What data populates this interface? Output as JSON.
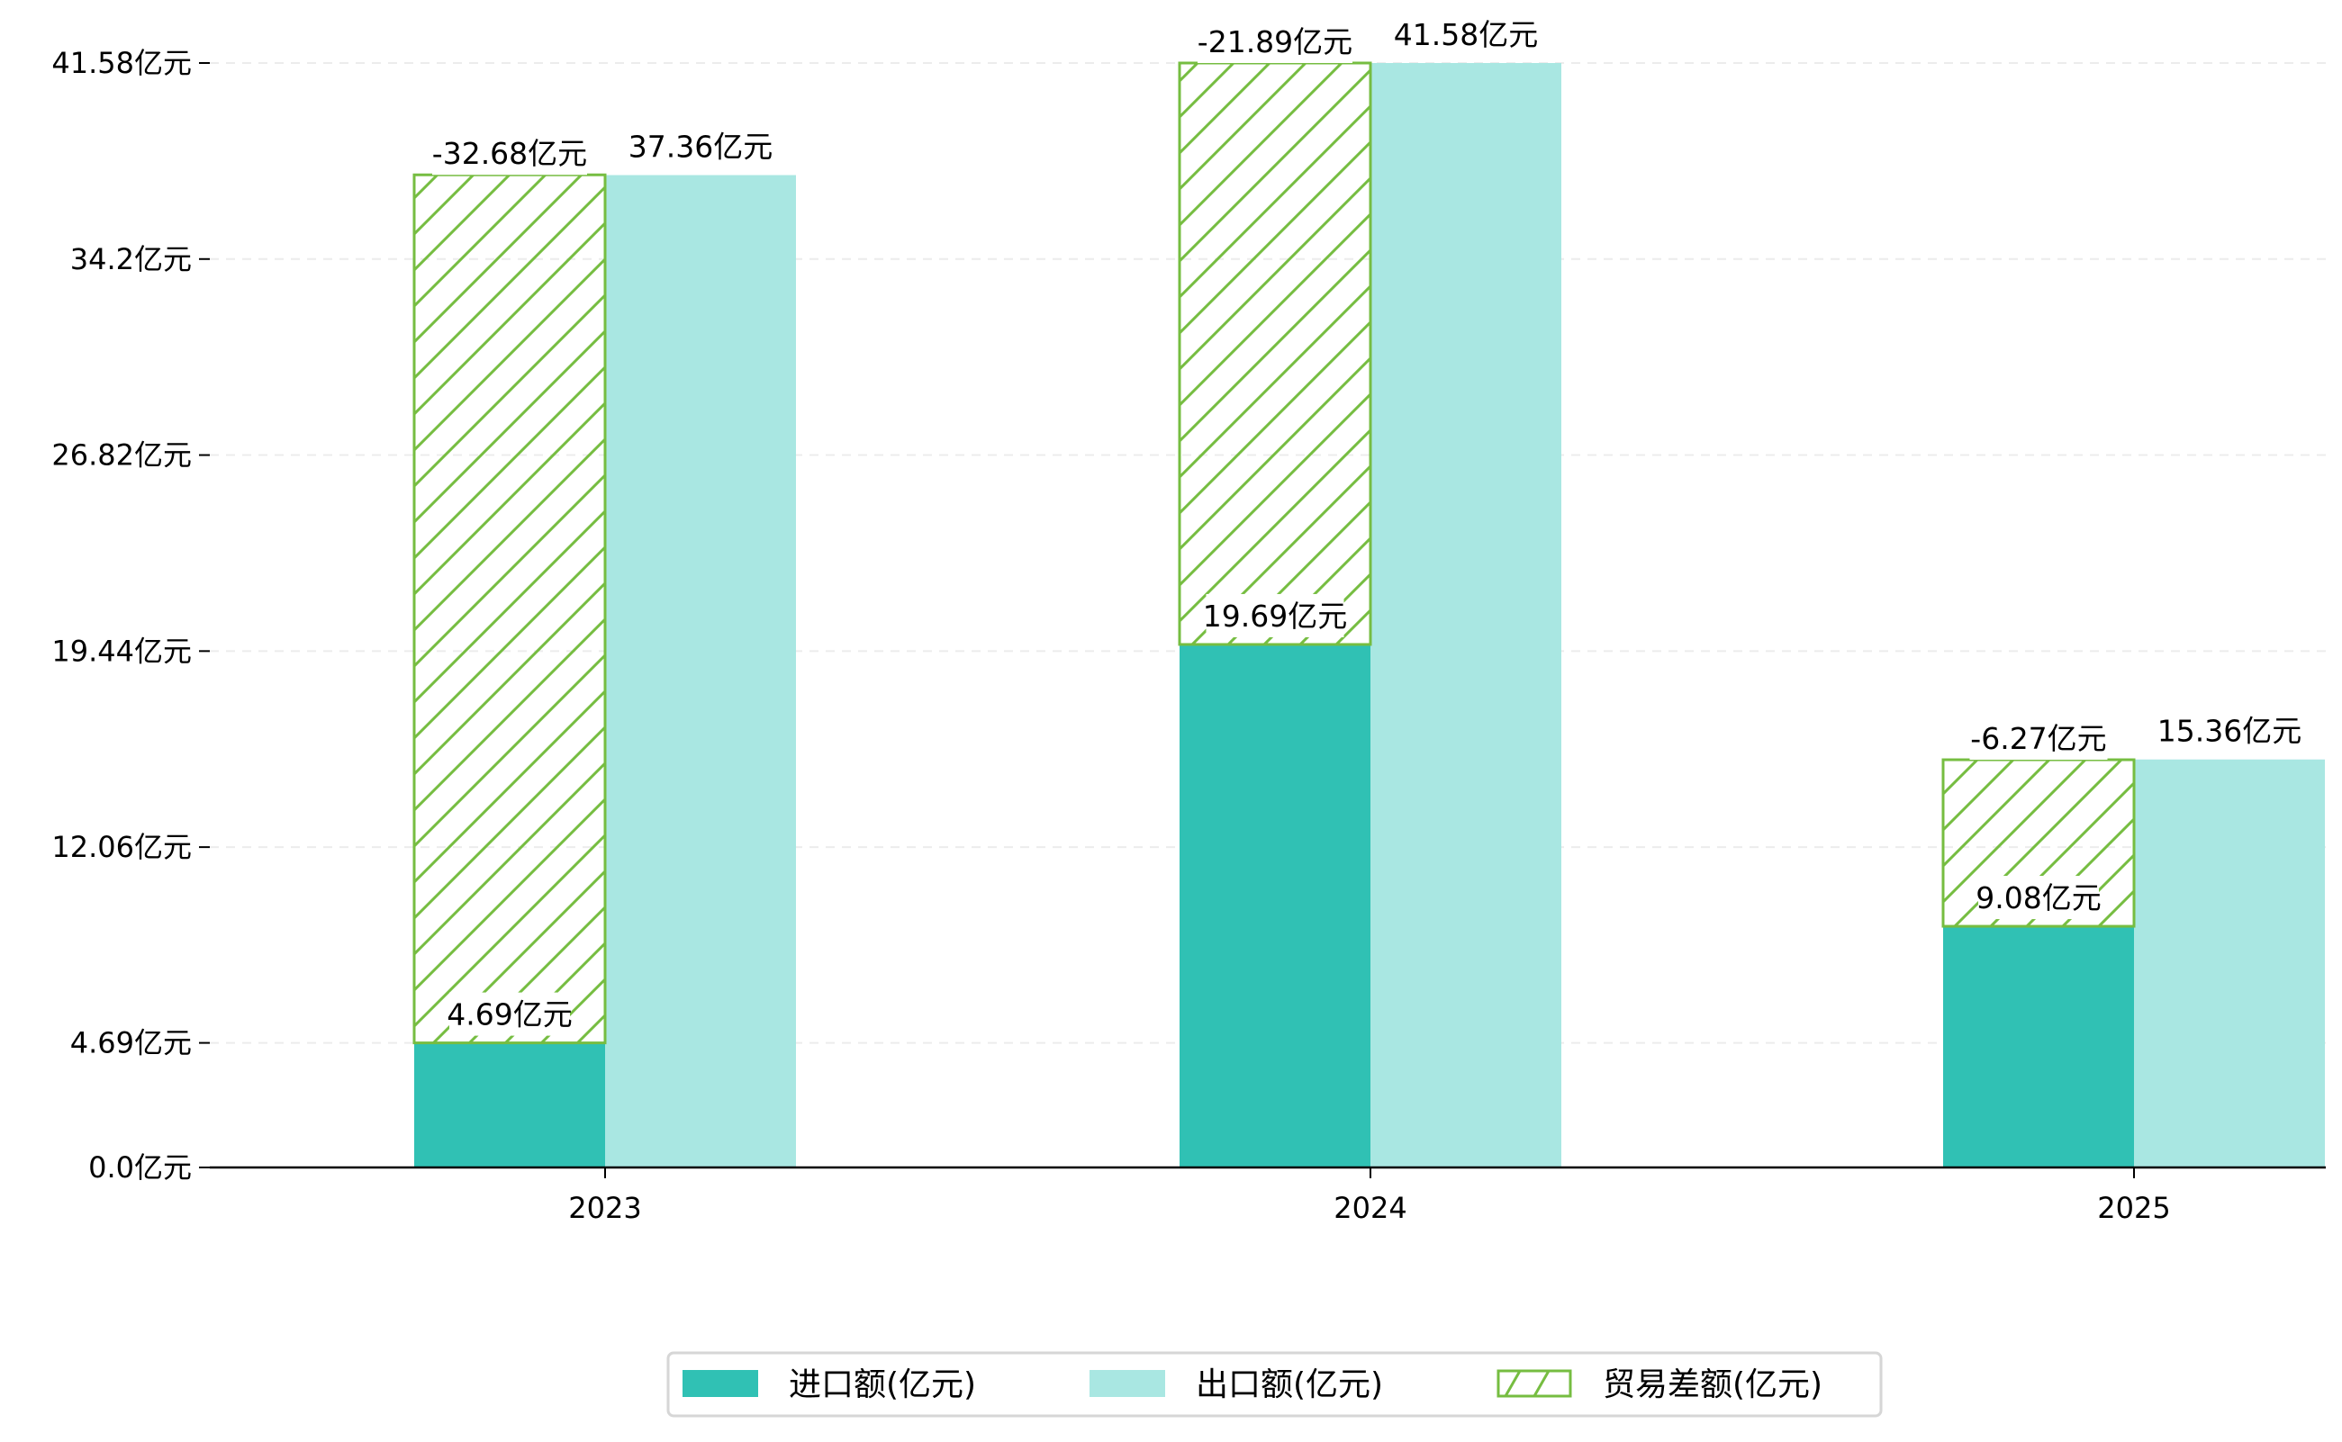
{
  "chart_data": {
    "type": "bar",
    "title": "",
    "xlabel": "",
    "ylabel": "",
    "categories": [
      "2023",
      "2024",
      "2025"
    ],
    "series": [
      {
        "name": "进口额(亿元)",
        "values": [
          4.69,
          19.69,
          9.08
        ],
        "labels": [
          "4.69亿元",
          "19.69亿元",
          "9.08亿元"
        ],
        "color": "#30c1b4"
      },
      {
        "name": "出口额(亿元)",
        "values": [
          37.36,
          41.58,
          15.36
        ],
        "labels": [
          "37.36亿元",
          "41.58亿元",
          "15.36亿元"
        ],
        "color": "#a9e7e2"
      },
      {
        "name": "贸易差额(亿元)",
        "values": [
          -32.68,
          -21.89,
          -6.27
        ],
        "labels": [
          "-32.68亿元",
          "-21.89亿元",
          "-6.27亿元"
        ],
        "color": "#76bd41",
        "style": "hatched"
      }
    ],
    "yticks": [
      0.0,
      4.69,
      12.06,
      19.44,
      26.82,
      34.2,
      41.58
    ],
    "ytick_labels": [
      "0.0亿元",
      "4.69亿元",
      "12.06亿元",
      "19.44亿元",
      "26.82亿元",
      "34.2亿元",
      "41.58亿元"
    ],
    "ylim": [
      0,
      41.58
    ],
    "grid": true,
    "legend_position": "bottom-center"
  }
}
